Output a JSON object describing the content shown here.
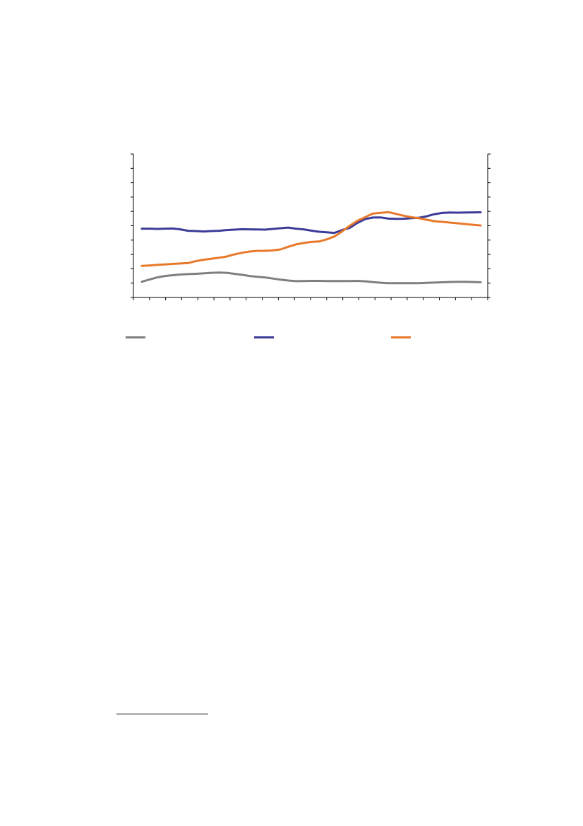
{
  "chart_data": {
    "type": "line",
    "title": "",
    "xlabel": "",
    "ylabel": "",
    "y2label": "",
    "ylim": [
      0,
      100
    ],
    "y2lim": [
      0,
      100
    ],
    "grid": false,
    "legend_position": "bottom",
    "x": [
      1,
      2,
      3,
      4,
      5,
      6,
      7,
      8,
      9,
      10,
      11,
      12,
      13,
      14,
      15,
      16,
      17,
      18,
      19,
      20,
      21,
      22,
      23,
      24,
      25,
      26,
      27,
      28,
      29,
      30,
      31,
      32,
      33,
      34,
      35,
      36,
      37,
      38,
      39,
      40,
      41,
      42,
      43,
      44,
      45
    ],
    "series": [
      {
        "name": "",
        "color": "#7f7f7f",
        "axis": "left",
        "values": [
          11,
          12.5,
          14,
          15,
          15.5,
          16,
          16.3,
          16.5,
          16.8,
          17.2,
          17.4,
          17.2,
          16.5,
          15.8,
          15,
          14.4,
          14,
          13.2,
          12.4,
          11.8,
          11.4,
          11.5,
          11.6,
          11.6,
          11.5,
          11.5,
          11.5,
          11.5,
          11.6,
          11.3,
          10.7,
          10.3,
          10,
          10,
          10,
          10,
          10,
          10.2,
          10.4,
          10.6,
          10.8,
          10.9,
          10.9,
          10.8,
          10.6
        ]
      },
      {
        "name": "",
        "color": "#3b3b98",
        "axis": "left",
        "values": [
          48,
          48,
          47.8,
          48,
          48.1,
          47.5,
          46.5,
          46.3,
          46,
          46.3,
          46.5,
          47,
          47.3,
          47.6,
          47.5,
          47.4,
          47.3,
          47.8,
          48.3,
          48.7,
          48,
          47.5,
          46.6,
          45.8,
          45.4,
          45,
          47,
          48.5,
          52,
          54.7,
          55.7,
          55.8,
          55,
          54.8,
          54.9,
          55.3,
          55.6,
          56.6,
          58.1,
          58.9,
          59.2,
          59.1,
          59.2,
          59.3,
          59.4
        ]
      },
      {
        "name": "",
        "color": "#e8792b",
        "axis": "right",
        "values": [
          22,
          22.3,
          22.7,
          23,
          23.4,
          23.7,
          24,
          25.3,
          26.3,
          27,
          27.7,
          28.5,
          30,
          31.2,
          32,
          32.5,
          32.5,
          32.8,
          33.5,
          35.3,
          37,
          38,
          38.7,
          39,
          40.5,
          42.5,
          46,
          50,
          53.5,
          56,
          58.5,
          59,
          59.5,
          58.3,
          57,
          56,
          55.2,
          54.2,
          53.2,
          52.7,
          52.2,
          51.7,
          51.2,
          50.7,
          50.2
        ]
      }
    ]
  }
}
